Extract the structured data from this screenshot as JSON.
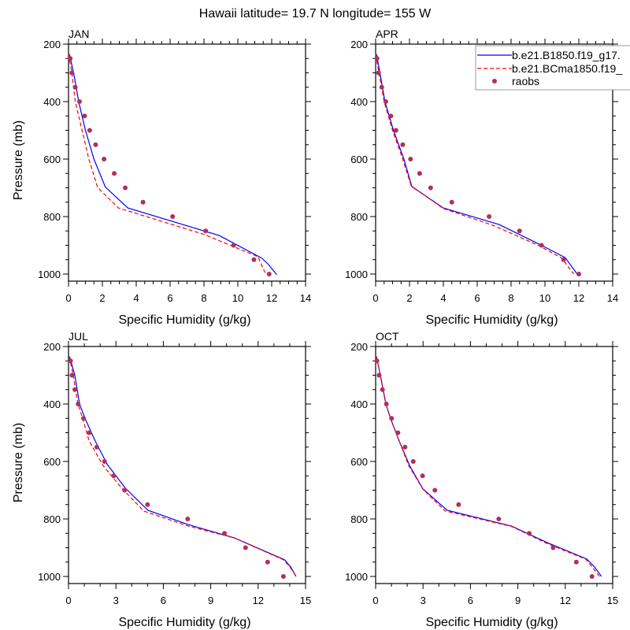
{
  "title": "Hawaii  latitude= 19.7 N longitude= 155 W",
  "colors": {
    "model1": "#0000ff",
    "model2": "#ff0000",
    "raobs": "#b0305c",
    "legend_border": "#999999"
  },
  "legend": {
    "placement": "top-right of APR panel",
    "entries": [
      {
        "label": "b.e21.B1850.f19_g17.",
        "style": "solid",
        "series": "model1"
      },
      {
        "label": "b.e21.BCma1850.f19_",
        "style": "dashed",
        "series": "model2"
      },
      {
        "label": "raobs",
        "style": "dot",
        "series": "raobs"
      }
    ]
  },
  "chart_data": [
    {
      "type": "line",
      "panel": "JAN",
      "title": "JAN",
      "xlabel": "Specific Humidity (g/kg)",
      "ylabel": "Pressure (mb)",
      "xlim": [
        0,
        14
      ],
      "xticks": [
        0,
        2,
        4,
        6,
        8,
        10,
        12,
        14
      ],
      "xminor": 0.5,
      "ylim": [
        200,
        1025
      ],
      "yticks": [
        200,
        400,
        600,
        800,
        1000
      ],
      "yminor": 50,
      "y_inverted": true,
      "series": [
        {
          "name": "b.e21.B1850.f19_g17.",
          "kind": "model1",
          "points": [
            [
              0.05,
              235
            ],
            [
              0.3,
              300
            ],
            [
              0.6,
              400
            ],
            [
              1.0,
              500
            ],
            [
              1.5,
              600
            ],
            [
              2.17,
              697
            ],
            [
              3.5,
              770
            ],
            [
              8.9,
              866
            ],
            [
              11.4,
              944
            ],
            [
              11.8,
              966
            ],
            [
              12.3,
              1002
            ]
          ]
        },
        {
          "name": "b.e21.BCma1850.f19_",
          "kind": "model2",
          "points": [
            [
              0.0,
              235
            ],
            [
              0.2,
              300
            ],
            [
              0.4,
              400
            ],
            [
              0.8,
              500
            ],
            [
              1.2,
              600
            ],
            [
              1.72,
              699
            ],
            [
              2.95,
              770
            ],
            [
              8.0,
              862
            ],
            [
              11.2,
              940
            ],
            [
              11.35,
              962
            ],
            [
              11.65,
              1000
            ]
          ]
        },
        {
          "name": "raobs",
          "kind": "raobs",
          "points": [
            [
              0.1,
              250
            ],
            [
              0.2,
              300
            ],
            [
              0.4,
              350
            ],
            [
              0.65,
              400
            ],
            [
              0.95,
              450
            ],
            [
              1.25,
              500
            ],
            [
              1.6,
              550
            ],
            [
              2.1,
              600
            ],
            [
              2.7,
              650
            ],
            [
              3.35,
              700
            ],
            [
              4.4,
              750
            ],
            [
              6.15,
              800
            ],
            [
              8.1,
              850
            ],
            [
              9.75,
              900
            ],
            [
              10.95,
              950
            ],
            [
              11.85,
              1000
            ]
          ]
        }
      ]
    },
    {
      "type": "line",
      "panel": "APR",
      "title": "APR",
      "xlabel": "Specific Humidity (g/kg)",
      "ylabel": "",
      "xlim": [
        0,
        14
      ],
      "xticks": [
        0,
        2,
        4,
        6,
        8,
        10,
        12,
        14
      ],
      "xminor": 0.5,
      "ylim": [
        200,
        1025
      ],
      "yticks": [
        200,
        400,
        600,
        800,
        1000
      ],
      "yminor": 50,
      "y_inverted": true,
      "series": [
        {
          "name": "b.e21.B1850.f19_g17.",
          "kind": "model1",
          "points": [
            [
              0.05,
              235
            ],
            [
              0.25,
              300
            ],
            [
              0.55,
              400
            ],
            [
              1.05,
              500
            ],
            [
              1.67,
              600
            ],
            [
              2.14,
              696
            ],
            [
              4.0,
              770
            ],
            [
              7.3,
              828
            ],
            [
              9.7,
              897
            ],
            [
              11.2,
              943
            ],
            [
              11.9,
              1000
            ]
          ]
        },
        {
          "name": "b.e21.BCma1850.f19_",
          "kind": "model2",
          "points": [
            [
              0.0,
              235
            ],
            [
              0.2,
              300
            ],
            [
              0.5,
              400
            ],
            [
              1.0,
              500
            ],
            [
              1.6,
              600
            ],
            [
              2.1,
              693
            ],
            [
              4.0,
              772
            ],
            [
              7.0,
              832
            ],
            [
              9.6,
              900
            ],
            [
              11.0,
              945
            ],
            [
              11.7,
              1000
            ]
          ]
        },
        {
          "name": "raobs",
          "kind": "raobs",
          "points": [
            [
              0.08,
              250
            ],
            [
              0.17,
              300
            ],
            [
              0.36,
              350
            ],
            [
              0.6,
              400
            ],
            [
              0.9,
              450
            ],
            [
              1.2,
              500
            ],
            [
              1.6,
              550
            ],
            [
              2.06,
              600
            ],
            [
              2.6,
              650
            ],
            [
              3.25,
              700
            ],
            [
              4.5,
              750
            ],
            [
              6.7,
              800
            ],
            [
              8.5,
              850
            ],
            [
              9.8,
              900
            ],
            [
              11.1,
              950
            ],
            [
              12.0,
              1000
            ]
          ]
        }
      ]
    },
    {
      "type": "line",
      "panel": "JUL",
      "title": "JUL",
      "xlabel": "Specific Humidity (g/kg)",
      "ylabel": "Pressure (mb)",
      "xlim": [
        0,
        15
      ],
      "xticks": [
        0,
        3,
        6,
        9,
        12,
        15
      ],
      "xminor": 1,
      "ylim": [
        200,
        1025
      ],
      "yticks": [
        200,
        400,
        600,
        800,
        1000
      ],
      "yminor": 50,
      "y_inverted": true,
      "series": [
        {
          "name": "b.e21.B1850.f19_g17.",
          "kind": "model1",
          "points": [
            [
              0.07,
              235
            ],
            [
              0.4,
              300
            ],
            [
              0.7,
              400
            ],
            [
              1.05,
              451
            ],
            [
              1.7,
              530
            ],
            [
              2.46,
              611
            ],
            [
              3.6,
              693
            ],
            [
              5.03,
              770
            ],
            [
              7.6,
              820
            ],
            [
              10.5,
              866
            ],
            [
              13.67,
              942
            ],
            [
              14.05,
              966
            ],
            [
              14.4,
              1000
            ]
          ]
        },
        {
          "name": "b.e21.BCma1850.f19_",
          "kind": "model2",
          "points": [
            [
              0.05,
              235
            ],
            [
              0.3,
              300
            ],
            [
              0.6,
              400
            ],
            [
              0.9,
              451
            ],
            [
              1.3,
              528
            ],
            [
              2.2,
              615
            ],
            [
              3.4,
              695
            ],
            [
              4.78,
              773
            ],
            [
              7.6,
              825
            ],
            [
              10.5,
              866
            ],
            [
              13.6,
              942
            ],
            [
              14.0,
              966
            ],
            [
              14.4,
              1000
            ]
          ]
        },
        {
          "name": "raobs",
          "kind": "raobs",
          "points": [
            [
              0.13,
              250
            ],
            [
              0.22,
              300
            ],
            [
              0.4,
              350
            ],
            [
              0.61,
              400
            ],
            [
              0.95,
              450
            ],
            [
              1.31,
              500
            ],
            [
              1.79,
              550
            ],
            [
              2.28,
              600
            ],
            [
              2.86,
              650
            ],
            [
              3.55,
              700
            ],
            [
              5.0,
              750
            ],
            [
              7.54,
              800
            ],
            [
              9.87,
              850
            ],
            [
              11.2,
              900
            ],
            [
              12.6,
              950
            ],
            [
              13.6,
              1000
            ]
          ]
        }
      ]
    },
    {
      "type": "line",
      "panel": "OCT",
      "title": "OCT",
      "xlabel": "Specific Humidity (g/kg)",
      "ylabel": "",
      "xlim": [
        0,
        15
      ],
      "xticks": [
        0,
        3,
        6,
        9,
        12,
        15
      ],
      "xminor": 1,
      "ylim": [
        200,
        1025
      ],
      "yticks": [
        200,
        400,
        600,
        800,
        1000
      ],
      "yminor": 50,
      "y_inverted": true,
      "series": [
        {
          "name": "b.e21.B1850.f19_g17.",
          "kind": "model1",
          "points": [
            [
              0.05,
              235
            ],
            [
              0.3,
              300
            ],
            [
              0.65,
              400
            ],
            [
              0.96,
              453
            ],
            [
              1.5,
              530
            ],
            [
              2.16,
              615
            ],
            [
              3.0,
              696
            ],
            [
              4.53,
              770
            ],
            [
              8.6,
              825
            ],
            [
              10.85,
              882
            ],
            [
              13.35,
              939
            ],
            [
              13.84,
              966
            ],
            [
              14.29,
              1000
            ]
          ]
        },
        {
          "name": "b.e21.BCma1850.f19_",
          "kind": "model2",
          "points": [
            [
              0.05,
              235
            ],
            [
              0.3,
              300
            ],
            [
              0.65,
              400
            ],
            [
              0.95,
              453
            ],
            [
              1.5,
              530
            ],
            [
              2.1,
              615
            ],
            [
              3.0,
              697
            ],
            [
              4.4,
              772
            ],
            [
              8.6,
              826
            ],
            [
              10.8,
              884
            ],
            [
              13.3,
              940
            ],
            [
              13.7,
              966
            ],
            [
              14.17,
              1000
            ]
          ]
        },
        {
          "name": "raobs",
          "kind": "raobs",
          "points": [
            [
              0.08,
              250
            ],
            [
              0.22,
              300
            ],
            [
              0.43,
              350
            ],
            [
              0.68,
              400
            ],
            [
              1.01,
              450
            ],
            [
              1.41,
              500
            ],
            [
              1.86,
              550
            ],
            [
              2.38,
              600
            ],
            [
              2.97,
              650
            ],
            [
              3.75,
              700
            ],
            [
              5.25,
              750
            ],
            [
              7.79,
              800
            ],
            [
              9.72,
              850
            ],
            [
              11.23,
              900
            ],
            [
              12.7,
              950
            ],
            [
              13.69,
              1000
            ]
          ]
        }
      ]
    }
  ]
}
